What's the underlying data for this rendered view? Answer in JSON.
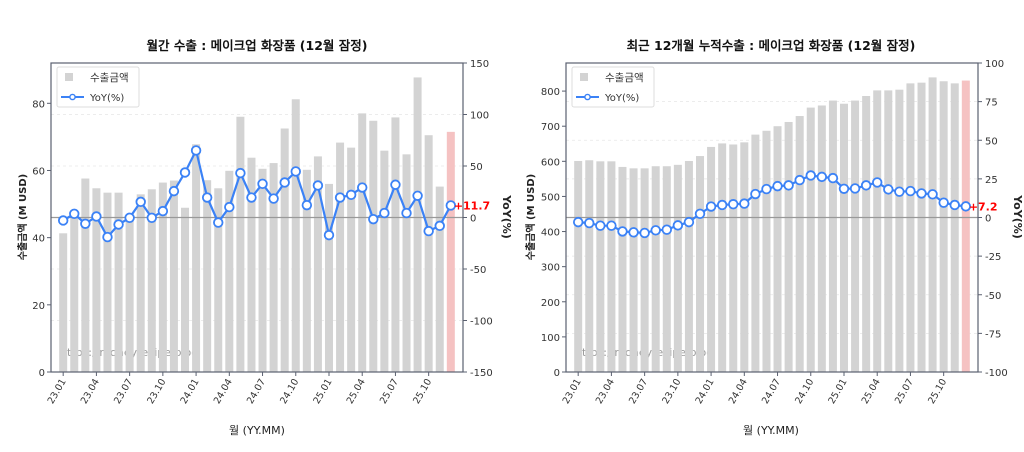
{
  "colors": {
    "bar": "#d3d3d3",
    "bar_highlight": "#f5c2c2",
    "line": "#3b82f6",
    "annotation": "#ff0000",
    "zero_line": "#999999",
    "axis": "#5a6070"
  },
  "watermark": "https://moneyrecipe.blog",
  "chart_data": [
    {
      "type": "bar+line",
      "title": "월간 수출 : 메이크업 화장품 (12월 잠정)",
      "xlabel": "월 (YY.MM)",
      "ylabel": "수출금액 (M USD)",
      "y2label": "YoY(%)",
      "ylim": [
        0,
        92
      ],
      "yticks": [
        0,
        20,
        40,
        60,
        80
      ],
      "y2lim": [
        -150,
        150
      ],
      "y2ticks": [
        -150,
        -100,
        -50,
        0,
        50,
        100,
        150
      ],
      "grid": "horizontal dashed on YoY axis",
      "legend": {
        "position": "top-left",
        "entries": [
          "수출금액",
          "YoY(%)"
        ]
      },
      "categories": [
        "23.01",
        "23.02",
        "23.03",
        "23.04",
        "23.05",
        "23.06",
        "23.07",
        "23.08",
        "23.09",
        "23.10",
        "23.11",
        "23.12",
        "24.01",
        "24.02",
        "24.03",
        "24.04",
        "24.05",
        "24.06",
        "24.07",
        "24.08",
        "24.09",
        "24.10",
        "24.11",
        "24.12",
        "25.01",
        "25.02",
        "25.03",
        "25.04",
        "25.05",
        "25.06",
        "25.07",
        "25.08",
        "25.09",
        "25.10",
        "25.11",
        "25.12"
      ],
      "xticklabels": [
        "23.01",
        "23.04",
        "23.07",
        "23.10",
        "24.01",
        "24.04",
        "24.07",
        "24.10",
        "25.01",
        "25.04",
        "25.07",
        "25.10"
      ],
      "series": [
        {
          "name": "수출금액",
          "type": "bar",
          "values": [
            41.3,
            47,
            57.6,
            54.7,
            53.4,
            53.4,
            47,
            52.9,
            54.4,
            56.4,
            57,
            48.9,
            67.8,
            57.1,
            54.7,
            59.9,
            76.0,
            63.8,
            60.5,
            62.2,
            72.5,
            81.2,
            60.2,
            64.2,
            56.0,
            68.3,
            66.8,
            77.0,
            74.8,
            65.9,
            75.8,
            64.8,
            87.7,
            70.5,
            55.2,
            71.5
          ],
          "highlight_last": true
        },
        {
          "name": "YoY(%)",
          "type": "line",
          "axis": "right",
          "values": [
            -2.9,
            3.6,
            -6.1,
            1.0,
            -19.0,
            -6.8,
            -0.3,
            15.2,
            -0.3,
            6.2,
            25.6,
            43.7,
            65.1,
            19.4,
            -4.9,
            10.1,
            43.1,
            19.4,
            32.7,
            18.4,
            34.0,
            44.7,
            12.0,
            31.1,
            -17.1,
            19.4,
            22.0,
            29.1,
            -1.6,
            4.3,
            31.8,
            4.3,
            21.1,
            -13.2,
            -8.1,
            11.7
          ]
        }
      ],
      "annotation": "+11.7"
    },
    {
      "type": "bar+line",
      "title": "최근 12개월 누적수출 : 메이크업 화장품 (12월 잠정)",
      "xlabel": "월 (YY.MM)",
      "ylabel": "수출금액 (M USD)",
      "y2label": "YoY(%)",
      "ylim": [
        0,
        880
      ],
      "yticks": [
        0,
        100,
        200,
        300,
        400,
        500,
        600,
        700,
        800
      ],
      "y2lim": [
        -100,
        100
      ],
      "y2ticks": [
        -100,
        -75,
        -50,
        -25,
        0,
        25,
        50,
        75,
        100
      ],
      "grid": "horizontal dashed on YoY axis",
      "legend": {
        "position": "top-left",
        "entries": [
          "수출금액",
          "YoY(%)"
        ]
      },
      "categories": [
        "23.01",
        "23.02",
        "23.03",
        "23.04",
        "23.05",
        "23.06",
        "23.07",
        "23.08",
        "23.09",
        "23.10",
        "23.11",
        "23.12",
        "24.01",
        "24.02",
        "24.03",
        "24.04",
        "24.05",
        "24.06",
        "24.07",
        "24.08",
        "24.09",
        "24.10",
        "24.11",
        "24.12",
        "25.01",
        "25.02",
        "25.03",
        "25.04",
        "25.05",
        "25.06",
        "25.07",
        "25.08",
        "25.09",
        "25.10",
        "25.11",
        "25.12"
      ],
      "xticklabels": [
        "23.01",
        "23.04",
        "23.07",
        "23.10",
        "24.01",
        "24.04",
        "24.07",
        "24.10",
        "25.01",
        "25.04",
        "25.07",
        "25.10"
      ],
      "series": [
        {
          "name": "수출금액",
          "type": "bar",
          "values": [
            601,
            603,
            600,
            600,
            584,
            580,
            580,
            586,
            586,
            590,
            601,
            615,
            641,
            651,
            648,
            654,
            676,
            687,
            700,
            712,
            729,
            753,
            759,
            773,
            764,
            773,
            786,
            802,
            802,
            804,
            822,
            824,
            839,
            828,
            822,
            830
          ],
          "highlight_last": true
        },
        {
          "name": "YoY(%)",
          "type": "line",
          "axis": "right",
          "values": [
            -3.0,
            -3.6,
            -5.3,
            -5.3,
            -9.0,
            -9.6,
            -10.0,
            -8.3,
            -7.9,
            -5.1,
            -3.0,
            2.4,
            7.1,
            8.1,
            8.6,
            9.0,
            15.2,
            18.4,
            20.3,
            20.8,
            24.2,
            27.2,
            26.3,
            25.5,
            18.6,
            18.8,
            20.8,
            22.7,
            18.2,
            16.7,
            17.1,
            15.6,
            15.0,
            9.6,
            8.1,
            7.2
          ]
        }
      ],
      "annotation": "+7.2"
    }
  ]
}
